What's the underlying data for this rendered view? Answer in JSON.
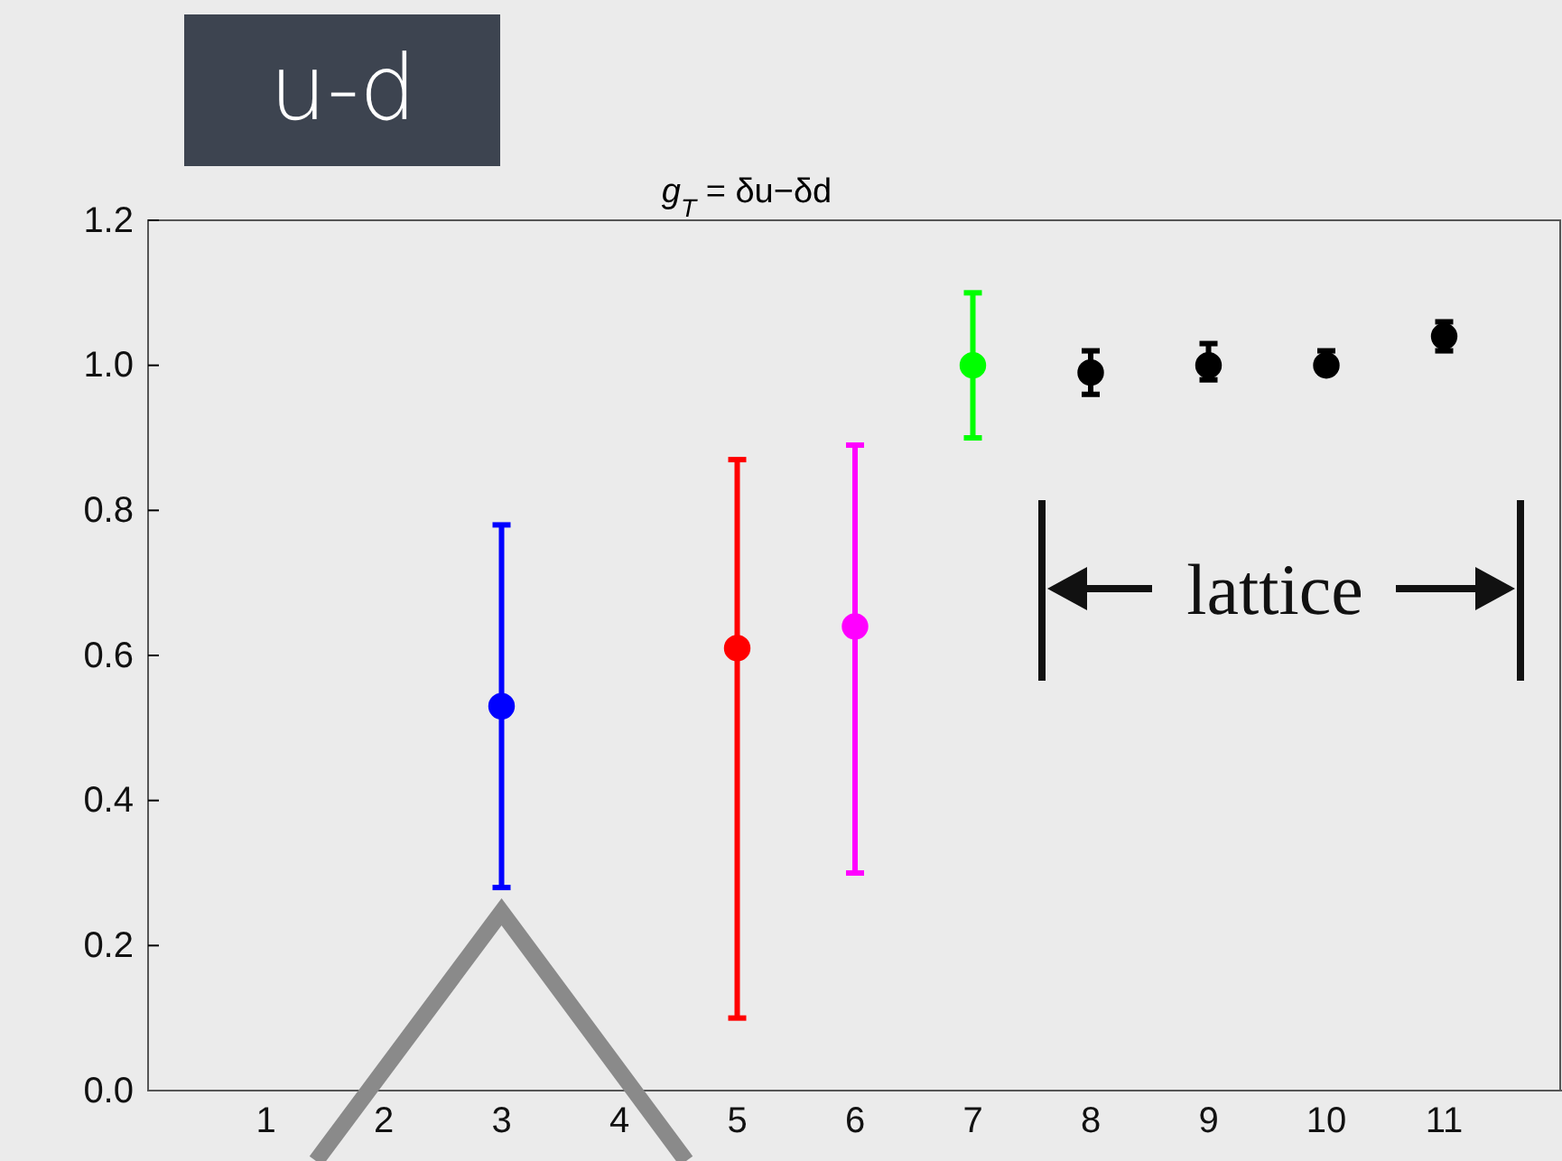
{
  "chart_data": {
    "type": "scatter",
    "title": "g$_{T}$ = δu−δd",
    "annotations": [
      "u-d",
      "lattice"
    ],
    "xlim": [
      0,
      12
    ],
    "xticks": [
      1,
      2,
      3,
      4,
      5,
      6,
      7,
      8,
      9,
      10,
      11
    ],
    "ylim": [
      0,
      1.2
    ],
    "yticks": [
      {
        "value": 0,
        "label": "0.0"
      },
      {
        "value": 0.2,
        "label": "0.2"
      },
      {
        "value": 0.4,
        "label": "0.4"
      },
      {
        "value": 0.6,
        "label": "0.6"
      },
      {
        "value": 0.8,
        "label": "0.8"
      },
      {
        "value": 1,
        "label": "1.0"
      },
      {
        "value": 1.2,
        "label": "1.2"
      }
    ],
    "grid": false,
    "marker": "circle",
    "series": [
      {
        "color": "#0000ff",
        "x": [
          3
        ],
        "values": [
          0.53
        ],
        "errors": [
          [
            0.28,
            0.78
          ]
        ]
      },
      {
        "color": "#ff0000",
        "x": [
          5
        ],
        "values": [
          0.61
        ],
        "errors": [
          [
            0.1,
            0.87
          ]
        ]
      },
      {
        "color": "#ff00ff",
        "x": [
          6
        ],
        "values": [
          0.64
        ],
        "errors": [
          [
            0.3,
            0.89
          ]
        ]
      },
      {
        "color": "#00ff00",
        "x": [
          7
        ],
        "values": [
          1.0
        ],
        "errors": [
          [
            0.9,
            1.1
          ]
        ]
      },
      {
        "color": "#000000",
        "x": [
          8,
          9,
          10,
          11
        ],
        "values": [
          0.99,
          1.0,
          1.0,
          1.04
        ],
        "errors": [
          [
            0.96,
            1.02
          ],
          [
            0.98,
            1.03
          ],
          [
            0.99,
            1.02
          ],
          [
            1.02,
            1.06
          ]
        ]
      }
    ]
  }
}
